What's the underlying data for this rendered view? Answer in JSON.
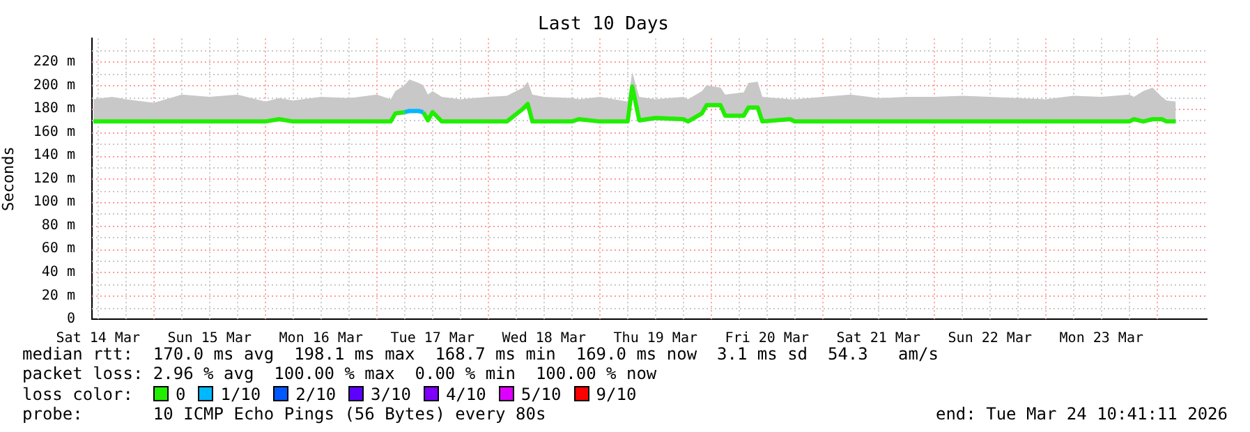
{
  "chart_data": {
    "type": "line",
    "title": "Last 10 Days",
    "ylabel": "Seconds",
    "legend_title": "loss color:",
    "legend": "bottom",
    "grid": true,
    "marker": "none",
    "xlim": [
      "2026-03-14T10:41",
      "2026-03-24T10:41"
    ],
    "xticks": [
      {
        "value": "2026-03-14T12:00",
        "label": "Sat 14 Mar"
      },
      {
        "value": "2026-03-15T12:00",
        "label": "Sun 15 Mar"
      },
      {
        "value": "2026-03-16T12:00",
        "label": "Mon 16 Mar"
      },
      {
        "value": "2026-03-17T12:00",
        "label": "Tue 17 Mar"
      },
      {
        "value": "2026-03-18T12:00",
        "label": "Wed 18 Mar"
      },
      {
        "value": "2026-03-19T12:00",
        "label": "Thu 19 Mar"
      },
      {
        "value": "2026-03-20T12:00",
        "label": "Fri 20 Mar"
      },
      {
        "value": "2026-03-21T12:00",
        "label": "Sat 21 Mar"
      },
      {
        "value": "2026-03-22T12:00",
        "label": "Sun 22 Mar"
      },
      {
        "value": "2026-03-23T12:00",
        "label": "Mon 23 Mar"
      },
      {
        "value": "2026-03-15T00:00",
        "label": null
      },
      {
        "value": "2026-03-16T00:00",
        "label": null
      },
      {
        "value": "2026-03-17T00:00",
        "label": null
      },
      {
        "value": "2026-03-18T00:00",
        "label": null
      },
      {
        "value": "2026-03-19T00:00",
        "label": null
      },
      {
        "value": "2026-03-20T00:00",
        "label": null
      },
      {
        "value": "2026-03-21T00:00",
        "label": null
      },
      {
        "value": "2026-03-22T00:00",
        "label": null
      },
      {
        "value": "2026-03-23T00:00",
        "label": null
      },
      {
        "value": "2026-03-24T00:00",
        "label": null
      }
    ],
    "ylim": [
      0,
      240
    ],
    "yticks": [
      0,
      {
        "value": 20,
        "label": "20 m"
      },
      {
        "value": 40,
        "label": "40 m"
      },
      {
        "value": 60,
        "label": "60 m"
      },
      {
        "value": 80,
        "label": "80 m"
      },
      {
        "value": 100,
        "label": "100 m"
      },
      {
        "value": 120,
        "label": "120 m"
      },
      {
        "value": 140,
        "label": "140 m"
      },
      {
        "value": 160,
        "label": "160 m"
      },
      {
        "value": 180,
        "label": "180 m"
      },
      {
        "value": 200,
        "label": "200 m"
      },
      {
        "value": 220,
        "label": "220 m"
      }
    ],
    "x": [
      "2026-03-14T11:00",
      "2026-03-14T15:00",
      "2026-03-14T18:00",
      "2026-03-15T00:00",
      "2026-03-15T06:00",
      "2026-03-15T12:00",
      "2026-03-15T18:00",
      "2026-03-16T00:00",
      "2026-03-16T03:00",
      "2026-03-16T06:00",
      "2026-03-16T12:00",
      "2026-03-16T18:00",
      "2026-03-17T00:00",
      "2026-03-17T03:00",
      "2026-03-17T04:00",
      "2026-03-17T06:00",
      "2026-03-17T07:00",
      "2026-03-17T09:00",
      "2026-03-17T10:00",
      "2026-03-17T11:00",
      "2026-03-17T12:00",
      "2026-03-17T14:00",
      "2026-03-17T18:00",
      "2026-03-18T00:00",
      "2026-03-18T04:00",
      "2026-03-18T07:30",
      "2026-03-18T08:30",
      "2026-03-18T09:30",
      "2026-03-18T12:00",
      "2026-03-18T18:00",
      "2026-03-18T19:30",
      "2026-03-19T00:00",
      "2026-03-19T06:00",
      "2026-03-19T07:00",
      "2026-03-19T08:30",
      "2026-03-19T12:00",
      "2026-03-19T18:00",
      "2026-03-19T19:00",
      "2026-03-19T22:00",
      "2026-03-19T23:00",
      "2026-03-20T02:00",
      "2026-03-20T03:00",
      "2026-03-20T07:00",
      "2026-03-20T08:00",
      "2026-03-20T10:00",
      "2026-03-20T11:00",
      "2026-03-20T17:00",
      "2026-03-20T18:00",
      "2026-03-21T00:00",
      "2026-03-21T06:00",
      "2026-03-21T12:00",
      "2026-03-21T18:00",
      "2026-03-22T00:00",
      "2026-03-22T06:00",
      "2026-03-22T12:00",
      "2026-03-22T18:00",
      "2026-03-23T00:00",
      "2026-03-23T06:00",
      "2026-03-23T12:00",
      "2026-03-23T18:00",
      "2026-03-23T19:00",
      "2026-03-23T21:00",
      "2026-03-23T23:00",
      "2026-03-24T01:00",
      "2026-03-24T02:00",
      "2026-03-24T04:00"
    ],
    "series": [
      {
        "name": "0",
        "color": "#22ee00",
        "values": [
          169,
          169,
          169,
          169,
          169,
          169,
          169,
          169,
          171,
          169,
          169,
          169,
          169,
          169,
          176,
          177,
          null,
          null,
          177,
          170,
          177,
          169,
          169,
          169,
          169,
          180,
          184,
          169,
          169,
          169,
          171,
          169,
          169,
          199,
          170,
          172,
          171,
          169,
          176,
          183,
          183,
          174,
          174,
          181,
          181,
          169,
          171,
          169,
          169,
          169,
          169,
          169,
          169,
          169,
          169,
          169,
          169,
          169,
          169,
          169,
          171,
          169,
          171,
          171,
          169,
          169
        ],
        "lower": [
          168,
          168,
          168,
          168,
          168,
          168,
          168,
          168,
          169,
          168,
          168,
          168,
          168,
          168,
          174,
          175,
          176,
          176,
          175,
          168,
          175,
          168,
          168,
          168,
          168,
          178,
          182,
          168,
          168,
          168,
          169,
          168,
          168,
          197,
          168,
          170,
          169,
          168,
          174,
          181,
          181,
          172,
          172,
          179,
          179,
          168,
          169,
          168,
          168,
          168,
          168,
          168,
          168,
          168,
          168,
          168,
          168,
          168,
          168,
          168,
          169,
          168,
          169,
          169,
          168,
          168
        ],
        "upper": [
          188,
          190,
          188,
          185,
          192,
          190,
          192,
          186,
          189,
          187,
          190,
          189,
          192,
          188,
          195,
          200,
          205,
          202,
          200,
          192,
          195,
          190,
          188,
          190,
          191,
          198,
          203,
          192,
          190,
          189,
          188,
          190,
          186,
          211,
          190,
          188,
          190,
          188,
          195,
          200,
          198,
          192,
          194,
          202,
          203,
          190,
          188,
          188,
          190,
          192,
          189,
          190,
          190,
          191,
          190,
          189,
          188,
          191,
          190,
          192,
          190,
          195,
          198,
          190,
          187,
          186
        ]
      },
      {
        "name": "1/10",
        "color": "#00b8ff",
        "values": [
          null,
          null,
          null,
          null,
          null,
          null,
          null,
          null,
          null,
          null,
          null,
          null,
          null,
          null,
          null,
          177,
          178,
          178,
          177,
          null,
          null,
          null,
          null,
          null,
          null,
          null,
          null,
          null,
          null,
          null,
          null,
          null,
          null,
          null,
          null,
          null,
          null,
          null,
          null,
          null,
          null,
          null,
          null,
          null,
          null,
          null,
          null,
          null,
          null,
          null,
          null,
          null,
          null,
          null,
          null,
          null,
          null,
          null,
          null,
          null,
          null,
          null,
          null,
          null,
          null,
          null
        ]
      },
      {
        "name": "2/10",
        "color": "#0059ff",
        "values": [
          null,
          null,
          null,
          null,
          null,
          null,
          null,
          null,
          null,
          null,
          null,
          null,
          null,
          null,
          null,
          null,
          null,
          null,
          null,
          null,
          null,
          null,
          null,
          null,
          null,
          null,
          null,
          null,
          null,
          null,
          null,
          null,
          null,
          null,
          null,
          null,
          null,
          null,
          null,
          null,
          null,
          null,
          null,
          null,
          null,
          null,
          null,
          null,
          null,
          null,
          null,
          null,
          null,
          null,
          null,
          null,
          null,
          null,
          null,
          null,
          null,
          null,
          null,
          null,
          null,
          null
        ]
      },
      {
        "name": "3/10",
        "color": "#5e00ff",
        "values": [
          null,
          null,
          null,
          null,
          null,
          null,
          null,
          null,
          null,
          null,
          null,
          null,
          null,
          null,
          null,
          null,
          null,
          null,
          null,
          null,
          null,
          null,
          null,
          null,
          null,
          null,
          null,
          null,
          null,
          null,
          null,
          null,
          null,
          null,
          null,
          null,
          null,
          null,
          null,
          null,
          null,
          null,
          null,
          null,
          null,
          null,
          null,
          null,
          null,
          null,
          null,
          null,
          null,
          null,
          null,
          null,
          null,
          null,
          null,
          null,
          null,
          null,
          null,
          null,
          null,
          null
        ]
      },
      {
        "name": "4/10",
        "color": "#7e00ff",
        "values": [
          null,
          null,
          null,
          null,
          null,
          null,
          null,
          null,
          null,
          null,
          null,
          null,
          null,
          null,
          null,
          null,
          null,
          null,
          null,
          null,
          null,
          null,
          null,
          null,
          null,
          null,
          null,
          null,
          null,
          null,
          null,
          null,
          null,
          null,
          null,
          null,
          null,
          null,
          null,
          null,
          null,
          null,
          null,
          null,
          null,
          null,
          null,
          null,
          null,
          null,
          null,
          null,
          null,
          null,
          null,
          null,
          null,
          null,
          null,
          null,
          null,
          null,
          null,
          null,
          null,
          null
        ]
      },
      {
        "name": "5/10",
        "color": "#dd00ff",
        "values": [
          null,
          null,
          null,
          null,
          null,
          null,
          null,
          null,
          null,
          null,
          null,
          null,
          null,
          null,
          null,
          null,
          null,
          null,
          null,
          null,
          null,
          null,
          null,
          null,
          null,
          null,
          null,
          null,
          null,
          null,
          null,
          null,
          null,
          null,
          null,
          null,
          null,
          null,
          null,
          null,
          null,
          null,
          null,
          null,
          null,
          null,
          null,
          null,
          null,
          null,
          null,
          null,
          null,
          null,
          null,
          null,
          null,
          null,
          null,
          null,
          null,
          null,
          null,
          null,
          null,
          null
        ]
      },
      {
        "name": "9/10",
        "color": "#ff0000",
        "values": [
          null,
          null,
          null,
          null,
          null,
          null,
          null,
          null,
          null,
          null,
          null,
          null,
          null,
          null,
          null,
          null,
          null,
          null,
          null,
          null,
          null,
          null,
          null,
          null,
          null,
          null,
          null,
          null,
          null,
          null,
          null,
          null,
          null,
          null,
          null,
          null,
          null,
          null,
          null,
          null,
          null,
          null,
          null,
          null,
          null,
          null,
          null,
          null,
          null,
          null,
          null,
          null,
          null,
          null,
          null,
          null,
          null,
          null,
          null,
          null,
          null,
          null,
          null,
          null,
          null,
          null
        ]
      }
    ],
    "annotations": [
      "median rtt:  170.0 ms avg  198.1 ms max  168.7 ms min  169.0 ms now  3.1 ms sd  54.3   am/s",
      "packet loss: 2.96 % avg  100.00 % max  0.00 % min  100.00 % now",
      "probe:       10 ICMP Echo Pings (56 Bytes) every 80s",
      "end: Tue Mar 24 10:41:11 2026"
    ]
  }
}
